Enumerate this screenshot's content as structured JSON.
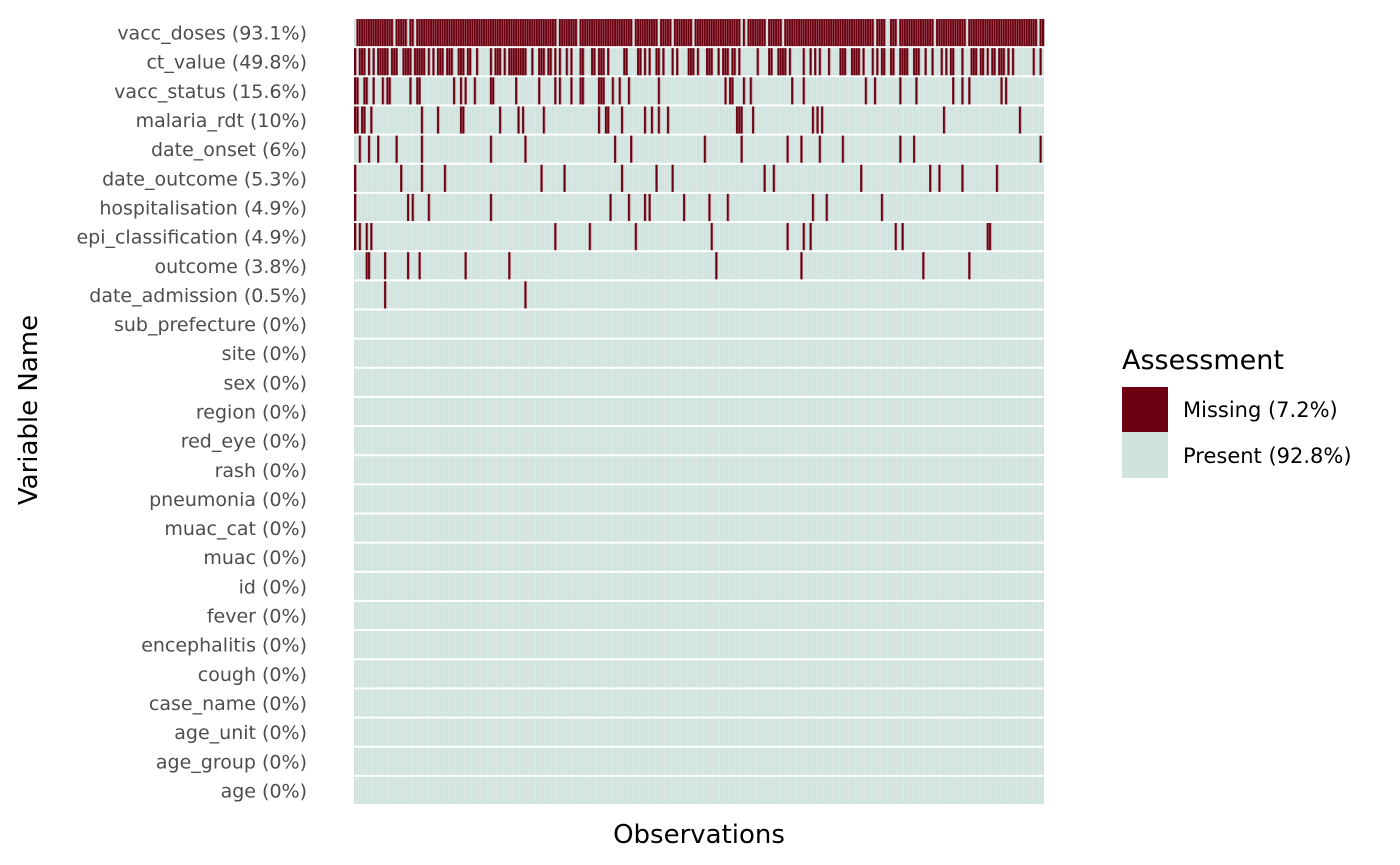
{
  "chart_data": {
    "type": "heatmap",
    "title": "",
    "xlabel": "Observations",
    "ylabel": "Variable Name",
    "x_ticks_shown": false,
    "grid": false,
    "legend_position": "right",
    "n_observations": 300,
    "legend": {
      "title": "Assessment",
      "items": [
        {
          "label": "Missing (7.2%)",
          "color": "#6b0010"
        },
        {
          "label": "Present (92.8%)",
          "color": "#cfe2de"
        }
      ]
    },
    "variables": [
      {
        "label": "vacc_doses (93.1%)",
        "missing_pct": 93.1
      },
      {
        "label": "ct_value (49.8%)",
        "missing_pct": 49.8
      },
      {
        "label": "vacc_status (15.6%)",
        "missing_pct": 15.6
      },
      {
        "label": "malaria_rdt (10%)",
        "missing_pct": 10
      },
      {
        "label": "date_onset (6%)",
        "missing_pct": 6
      },
      {
        "label": "date_outcome (5.3%)",
        "missing_pct": 5.3
      },
      {
        "label": "hospitalisation (4.9%)",
        "missing_pct": 4.9
      },
      {
        "label": "epi_classification (4.9%)",
        "missing_pct": 4.9
      },
      {
        "label": "outcome (3.8%)",
        "missing_pct": 3.8
      },
      {
        "label": "date_admission (0.5%)",
        "missing_pct": 0.5
      },
      {
        "label": "sub_prefecture (0%)",
        "missing_pct": 0
      },
      {
        "label": "site (0%)",
        "missing_pct": 0
      },
      {
        "label": "sex (0%)",
        "missing_pct": 0
      },
      {
        "label": "region (0%)",
        "missing_pct": 0
      },
      {
        "label": "red_eye (0%)",
        "missing_pct": 0
      },
      {
        "label": "rash (0%)",
        "missing_pct": 0
      },
      {
        "label": "pneumonia (0%)",
        "missing_pct": 0
      },
      {
        "label": "muac_cat (0%)",
        "missing_pct": 0
      },
      {
        "label": "muac (0%)",
        "missing_pct": 0
      },
      {
        "label": "id (0%)",
        "missing_pct": 0
      },
      {
        "label": "fever (0%)",
        "missing_pct": 0
      },
      {
        "label": "encephalitis (0%)",
        "missing_pct": 0
      },
      {
        "label": "cough (0%)",
        "missing_pct": 0
      },
      {
        "label": "case_name (0%)",
        "missing_pct": 0
      },
      {
        "label": "age_unit (0%)",
        "missing_pct": 0
      },
      {
        "label": "age_group (0%)",
        "missing_pct": 0
      },
      {
        "label": "age (0%)",
        "missing_pct": 0
      }
    ]
  }
}
